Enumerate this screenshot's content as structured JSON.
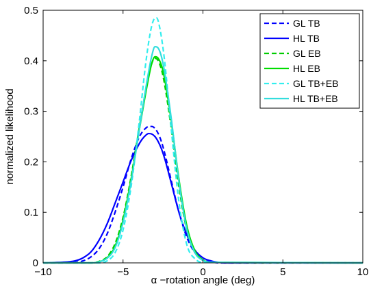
{
  "chart_data": {
    "type": "line",
    "title": "",
    "xlabel": "α −rotation angle (deg)",
    "ylabel": "normalized likelihood",
    "xlim": [
      -10,
      10
    ],
    "ylim": [
      0,
      0.5
    ],
    "xticks": [
      -10,
      -5,
      0,
      5,
      10
    ],
    "xtick_labels": [
      "−10",
      "−5",
      "0",
      "5",
      "10"
    ],
    "yticks": [
      0,
      0.1,
      0.2,
      0.3,
      0.4,
      0.5
    ],
    "ytick_labels": [
      "0",
      "0.1",
      "0.2",
      "0.3",
      "0.4",
      "0.5"
    ],
    "grid": false,
    "legend_position": "top-right",
    "series": [
      {
        "name": "GL TB",
        "color": "#0000ff",
        "dash": "dashed",
        "x": [
          -10,
          -9,
          -8,
          -7.5,
          -7,
          -6.5,
          -6,
          -5.5,
          -5,
          -4.5,
          -4,
          -3.8,
          -3.6,
          -3.4,
          -3.2,
          -3,
          -2.8,
          -2.6,
          -2.4,
          -2,
          -1.5,
          -1,
          -0.5,
          0,
          0.5,
          1,
          10
        ],
        "y": [
          0,
          0,
          0.001,
          0.004,
          0.012,
          0.028,
          0.057,
          0.1,
          0.15,
          0.205,
          0.248,
          0.259,
          0.266,
          0.27,
          0.27,
          0.266,
          0.256,
          0.24,
          0.218,
          0.165,
          0.1,
          0.05,
          0.02,
          0.006,
          0.002,
          0,
          0
        ]
      },
      {
        "name": "HL TB",
        "color": "#0000ff",
        "dash": "solid",
        "x": [
          -10,
          -9,
          -8,
          -7.5,
          -7,
          -6.5,
          -6,
          -5.5,
          -5,
          -4.5,
          -4,
          -3.8,
          -3.6,
          -3.4,
          -3.2,
          -3,
          -2.8,
          -2.6,
          -2.4,
          -2,
          -1.5,
          -1,
          -0.5,
          0,
          0.5,
          1,
          1.5,
          10
        ],
        "y": [
          0,
          0.001,
          0.004,
          0.01,
          0.022,
          0.045,
          0.077,
          0.118,
          0.16,
          0.202,
          0.235,
          0.245,
          0.252,
          0.256,
          0.255,
          0.25,
          0.24,
          0.226,
          0.207,
          0.16,
          0.1,
          0.055,
          0.025,
          0.01,
          0.004,
          0.001,
          0,
          0
        ]
      },
      {
        "name": "GL EB",
        "color": "#00cc00",
        "dash": "dashed",
        "x": [
          -10,
          -7,
          -6.5,
          -6,
          -5.5,
          -5,
          -4.5,
          -4,
          -3.5,
          -3.2,
          -3,
          -2.8,
          -2.5,
          -2,
          -1.5,
          -1,
          -0.5,
          0,
          0.5,
          10
        ],
        "y": [
          0,
          0,
          0.003,
          0.012,
          0.038,
          0.09,
          0.17,
          0.265,
          0.355,
          0.395,
          0.405,
          0.4,
          0.37,
          0.27,
          0.15,
          0.063,
          0.02,
          0.005,
          0.001,
          0
        ]
      },
      {
        "name": "HL EB",
        "color": "#00dd00",
        "dash": "solid",
        "x": [
          -10,
          -7,
          -6.5,
          -6,
          -5.5,
          -5,
          -4.5,
          -4,
          -3.5,
          -3.2,
          -3,
          -2.8,
          -2.5,
          -2,
          -1.5,
          -1,
          -0.5,
          0,
          0.5,
          10
        ],
        "y": [
          0,
          0,
          0.002,
          0.01,
          0.033,
          0.085,
          0.165,
          0.26,
          0.35,
          0.395,
          0.408,
          0.405,
          0.38,
          0.285,
          0.165,
          0.072,
          0.024,
          0.006,
          0.001,
          0
        ]
      },
      {
        "name": "GL TB+EB",
        "color": "#33eeee",
        "dash": "dashed",
        "x": [
          -10,
          -6.5,
          -6,
          -5.5,
          -5,
          -4.5,
          -4,
          -3.6,
          -3.3,
          -3.1,
          -2.9,
          -2.7,
          -2.4,
          -2,
          -1.5,
          -1,
          -0.5,
          0,
          10
        ],
        "y": [
          0,
          0,
          0.004,
          0.02,
          0.065,
          0.15,
          0.275,
          0.39,
          0.455,
          0.48,
          0.485,
          0.465,
          0.4,
          0.27,
          0.12,
          0.035,
          0.008,
          0.001,
          0
        ]
      },
      {
        "name": "HL TB+EB",
        "color": "#33dddd",
        "dash": "solid",
        "x": [
          -10,
          -7,
          -6.5,
          -6,
          -5.5,
          -5,
          -4.5,
          -4,
          -3.5,
          -3.2,
          -3,
          -2.8,
          -2.5,
          -2,
          -1.5,
          -1,
          -0.5,
          0,
          0.5,
          10
        ],
        "y": [
          0,
          0,
          0.002,
          0.009,
          0.03,
          0.08,
          0.16,
          0.26,
          0.36,
          0.41,
          0.428,
          0.425,
          0.395,
          0.29,
          0.16,
          0.065,
          0.02,
          0.005,
          0.001,
          0
        ]
      }
    ]
  }
}
